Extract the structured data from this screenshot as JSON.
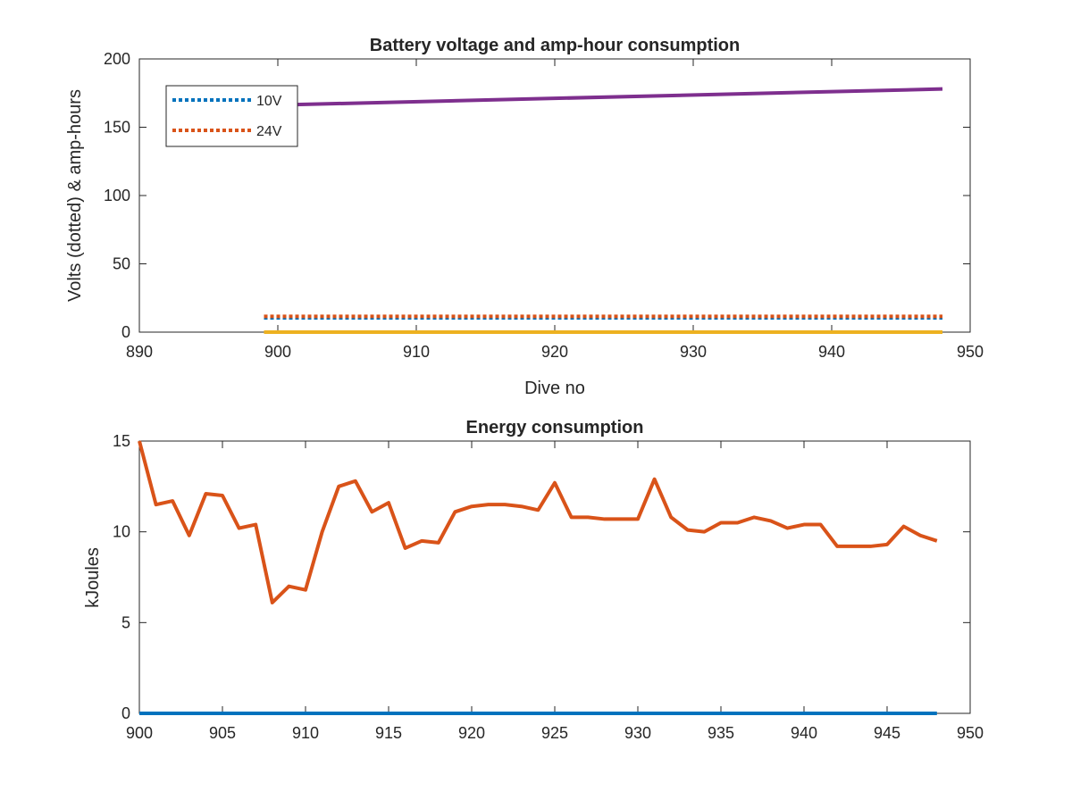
{
  "chart_data": [
    {
      "type": "line",
      "title": "Battery voltage and amp-hour consumption",
      "xlabel": "Dive no",
      "ylabel": "Volts (dotted) & amp-hours",
      "xlim": [
        890,
        950
      ],
      "ylim": [
        0,
        200
      ],
      "xticks": [
        "890",
        "900",
        "910",
        "920",
        "930",
        "940",
        "950"
      ],
      "yticks": [
        "0",
        "50",
        "100",
        "150",
        "200"
      ],
      "grid": false,
      "legend_position": "top-left",
      "series": [
        {
          "name": "10V",
          "style": "dotted",
          "color": "#0072BD",
          "x": [
            899,
            948
          ],
          "y": [
            10.5,
            10.5
          ]
        },
        {
          "name": "24V",
          "style": "dotted",
          "color": "#D95319",
          "x": [
            899,
            948
          ],
          "y": [
            11.5,
            11.5
          ]
        },
        {
          "style": "solid",
          "color": "#EDB120",
          "x": [
            899,
            948
          ],
          "y": [
            0,
            0
          ]
        },
        {
          "style": "solid",
          "color": "#7E2F8E",
          "x": [
            899,
            948
          ],
          "y": [
            166,
            178
          ]
        }
      ]
    },
    {
      "type": "line",
      "title": "Energy consumption",
      "xlabel": "",
      "ylabel": "kJoules",
      "xlim": [
        900,
        950
      ],
      "ylim": [
        0,
        15
      ],
      "xticks": [
        "900",
        "905",
        "910",
        "915",
        "920",
        "925",
        "930",
        "935",
        "940",
        "945",
        "950"
      ],
      "yticks": [
        "0",
        "5",
        "10",
        "15"
      ],
      "grid": false,
      "series": [
        {
          "style": "solid",
          "color": "#0072BD",
          "x": [
            900,
            948
          ],
          "y": [
            0,
            0
          ]
        },
        {
          "style": "solid",
          "color": "#D95319",
          "x": [
            900,
            901,
            902,
            903,
            904,
            905,
            906,
            907,
            908,
            909,
            910,
            911,
            912,
            913,
            914,
            915,
            916,
            917,
            918,
            919,
            920,
            921,
            922,
            923,
            924,
            925,
            926,
            927,
            928,
            929,
            930,
            931,
            932,
            933,
            934,
            935,
            936,
            937,
            938,
            939,
            940,
            941,
            942,
            943,
            944,
            945,
            946,
            947,
            948
          ],
          "y": [
            15.0,
            11.5,
            11.7,
            9.8,
            12.1,
            12.0,
            10.2,
            10.4,
            6.1,
            7.0,
            6.8,
            10.0,
            12.5,
            12.8,
            11.1,
            11.6,
            9.1,
            9.5,
            9.4,
            11.1,
            11.4,
            11.5,
            11.5,
            11.4,
            11.2,
            12.7,
            10.8,
            10.8,
            10.7,
            10.7,
            10.7,
            12.9,
            10.8,
            10.1,
            10.0,
            10.5,
            10.5,
            10.8,
            10.6,
            10.2,
            10.4,
            10.4,
            9.2,
            9.2,
            9.2,
            9.3,
            10.3,
            9.8,
            9.5
          ]
        }
      ]
    }
  ]
}
